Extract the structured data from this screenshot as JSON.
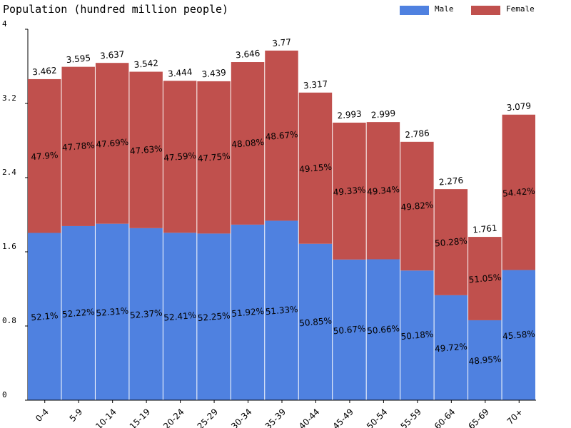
{
  "chart_data": {
    "type": "bar",
    "stacked": true,
    "title": "Population (hundred million people)",
    "ylim": [
      0,
      4
    ],
    "yticks": [
      0,
      0.8,
      1.6,
      2.4,
      3.2,
      4
    ],
    "ytick_labels": [
      "0",
      "0.8",
      "1.6",
      "2.4",
      "3.2",
      "4"
    ],
    "legend_position": "top-right",
    "categories": [
      "0-4",
      "5-9",
      "10-14",
      "15-19",
      "20-24",
      "25-29",
      "30-34",
      "35-39",
      "40-44",
      "45-49",
      "50-54",
      "55-59",
      "60-64",
      "65-69",
      "70+"
    ],
    "totals": [
      3.462,
      3.595,
      3.637,
      3.542,
      3.444,
      3.439,
      3.646,
      3.77,
      3.317,
      2.993,
      2.999,
      2.786,
      2.276,
      1.761,
      3.079
    ],
    "total_labels": [
      "3.462",
      "3.595",
      "3.637",
      "3.542",
      "3.444",
      "3.439",
      "3.646",
      "3.77",
      "3.317",
      "2.993",
      "2.999",
      "2.786",
      "2.276",
      "1.761",
      "3.079"
    ],
    "series": [
      {
        "name": "Male",
        "color": "#4f81e0",
        "percent": [
          52.1,
          52.22,
          52.31,
          52.37,
          52.41,
          52.25,
          51.92,
          51.33,
          50.85,
          50.67,
          50.66,
          50.18,
          49.72,
          48.95,
          45.58
        ],
        "labels": [
          "52.1%",
          "52.22%",
          "52.31%",
          "52.37%",
          "52.41%",
          "52.25%",
          "51.92%",
          "51.33%",
          "50.85%",
          "50.67%",
          "50.66%",
          "50.18%",
          "49.72%",
          "48.95%",
          "45.58%"
        ]
      },
      {
        "name": "Female",
        "color": "#c0504d",
        "percent": [
          47.9,
          47.78,
          47.69,
          47.63,
          47.59,
          47.75,
          48.08,
          48.67,
          49.15,
          49.33,
          49.34,
          49.82,
          50.28,
          51.05,
          54.42
        ],
        "labels": [
          "47.9%",
          "47.78%",
          "47.69%",
          "47.63%",
          "47.59%",
          "47.75%",
          "48.08%",
          "48.67%",
          "49.15%",
          "49.33%",
          "49.34%",
          "49.82%",
          "50.28%",
          "51.05%",
          "54.42%"
        ]
      }
    ],
    "grid": false
  }
}
